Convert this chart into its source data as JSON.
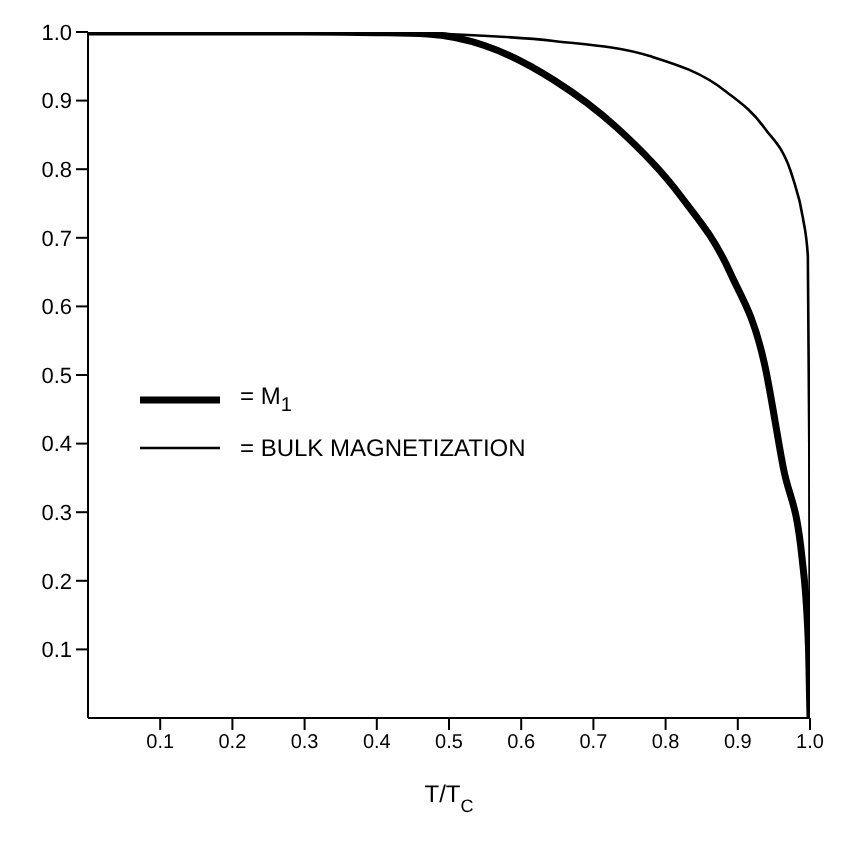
{
  "chart_data": {
    "type": "line",
    "xlabel": "T/T$_{C}$",
    "xlim": [
      0,
      1
    ],
    "ylim": [
      0,
      1
    ],
    "xticks": [
      0.1,
      0.2,
      0.3,
      0.4,
      0.5,
      0.6,
      0.7,
      0.8,
      0.9,
      {
        "value": 1,
        "label": "1.0"
      }
    ],
    "yticks": [
      0.1,
      0.2,
      0.3,
      0.4,
      0.5,
      0.6,
      0.7,
      0.8,
      0.9,
      {
        "value": 1,
        "label": "1.0"
      }
    ],
    "grid": false,
    "legend": "left",
    "marker": "none",
    "line_style": "solid",
    "series": [
      {
        "name": "= M$_{1}$",
        "color": "#000000",
        "x": [
          0,
          0.3,
          0.4,
          0.47,
          0.55,
          0.645,
          0.733,
          0.82,
          0.89,
          0.937,
          0.963,
          0.989,
          0.998,
          1.0
        ],
        "values": [
          1,
          1,
          0.999,
          0.997,
          0.98,
          0.93,
          0.86,
          0.762,
          0.648,
          0.516,
          0.365,
          0.233,
          0.1,
          0
        ]
      },
      {
        "name": "= BULK MAGNETIZATION",
        "color": "#000000",
        "x": [
          0,
          0.3,
          0.38,
          0.5,
          0.645,
          0.778,
          0.884,
          0.937,
          0.976,
          0.99,
          0.997,
          0.999,
          1.0
        ],
        "values": [
          1,
          1,
          1,
          0.997,
          0.987,
          0.965,
          0.913,
          0.86,
          0.788,
          0.73,
          0.674,
          0.4,
          0
        ]
      }
    ]
  }
}
